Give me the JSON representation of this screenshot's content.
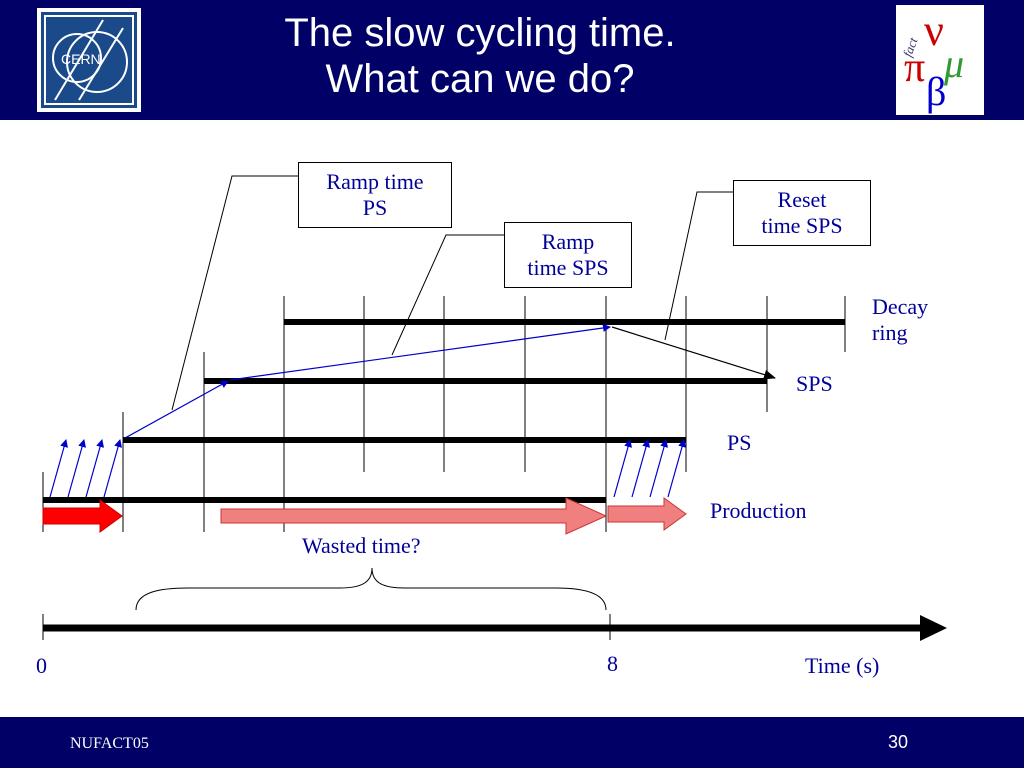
{
  "header": {
    "title_line1": "The slow cycling time.",
    "title_line2": "What can we do?",
    "logo_left_text": "CERN",
    "logo_right_text": "fact"
  },
  "callouts": {
    "ramp_ps_line1": "Ramp time",
    "ramp_ps_line2": "PS",
    "ramp_sps_line1": "Ramp",
    "ramp_sps_line2": "time SPS",
    "reset_sps_line1": "Reset",
    "reset_sps_line2": "time SPS"
  },
  "rows": {
    "decay_line1": "Decay",
    "decay_line2": "ring",
    "sps": "SPS",
    "ps": "PS",
    "production": "Production"
  },
  "annotations": {
    "wasted_time": "Wasted time?"
  },
  "axis": {
    "start": "0",
    "mark": "8",
    "label": "Time (s)"
  },
  "footer": {
    "left": "NUFACT05",
    "page_number": "30"
  },
  "colors": {
    "header_bg": "#000066",
    "text_blue": "#000099",
    "arrow_red": "#ff0000",
    "arrow_pink": "#f08080"
  }
}
